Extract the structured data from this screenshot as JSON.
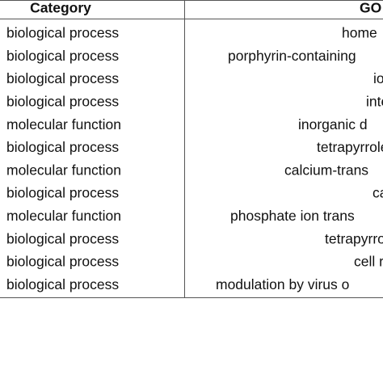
{
  "table": {
    "header": [
      "Category",
      "GO"
    ],
    "rows": [
      [
        "biological process",
        "home"
      ],
      [
        "biological process",
        "porphyrin-containing"
      ],
      [
        "biological process",
        "io"
      ],
      [
        "biological process",
        "intera"
      ],
      [
        "molecular function",
        "inorganic d"
      ],
      [
        "biological process",
        "tetrapyrrole"
      ],
      [
        "molecular function",
        "calcium-trans"
      ],
      [
        "biological process",
        "ca"
      ],
      [
        "molecular function",
        "phosphate ion trans"
      ],
      [
        "biological process",
        "tetrapyrrol"
      ],
      [
        "biological process",
        "cell re"
      ],
      [
        "biological process",
        "modulation by virus o"
      ]
    ]
  }
}
